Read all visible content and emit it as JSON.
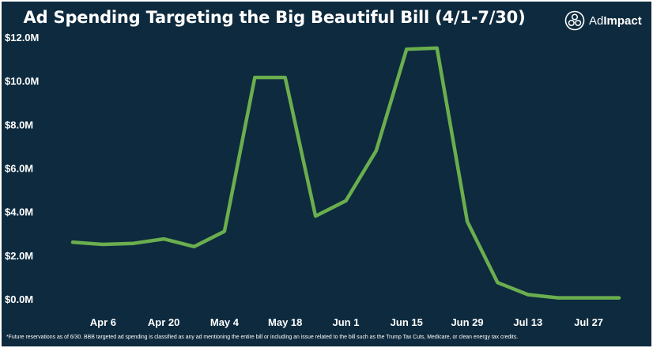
{
  "header": {
    "title": "Ad Spending Targeting the Big Beautiful Bill (4/1-7/30)",
    "brand_prefix": "Ad",
    "brand_suffix": "Impact",
    "brand_icon": "adimpact-logo-icon"
  },
  "colors": {
    "background": "#0e2a3e",
    "line": "#6aae4e",
    "text": "#ffffff"
  },
  "chart_data": {
    "type": "line",
    "title": "Ad Spending Targeting the Big Beautiful Bill (4/1-7/30)",
    "xlabel": "",
    "ylabel": "",
    "grid": false,
    "legend": "none",
    "ylim": [
      0,
      12
    ],
    "y_unit": "$M",
    "yticks": [
      0,
      2,
      4,
      6,
      8,
      10,
      12
    ],
    "ytick_labels": [
      "$0.0M",
      "$2.0M",
      "$4.0M",
      "$6.0M",
      "$8.0M",
      "$10.0M",
      "$12.0M"
    ],
    "x_tick_labels": [
      "Apr 6",
      "Apr 20",
      "May 4",
      "May 18",
      "Jun 1",
      "Jun 15",
      "Jun 29",
      "Jul 13",
      "Jul 27"
    ],
    "x_tick_positions": [
      1,
      3,
      5,
      7,
      9,
      11,
      13,
      15,
      17
    ],
    "series": [
      {
        "name": "Ad Spending",
        "x": [
          0,
          1,
          2,
          3,
          4,
          5,
          6,
          7,
          8,
          9,
          10,
          11,
          12,
          13,
          14,
          15,
          16,
          17,
          18
        ],
        "values": [
          2.6,
          2.5,
          2.55,
          2.75,
          2.4,
          3.1,
          10.15,
          10.15,
          3.8,
          4.5,
          6.8,
          11.45,
          11.5,
          3.55,
          0.75,
          0.2,
          0.05,
          0.05,
          0.05
        ]
      }
    ]
  },
  "footnote": "*Future reservations as of 6/30. BBB targeted ad spending is classified as any ad mentioning the entire bill or including an issue related to the bill such as the Trump Tax Cuts, Medicare, or clean energy tax credits."
}
